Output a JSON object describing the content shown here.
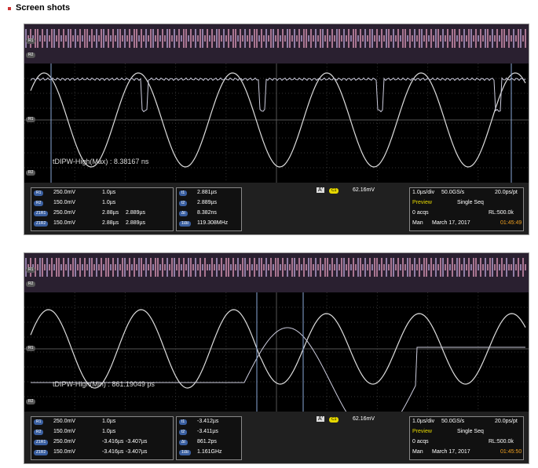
{
  "heading": "Screen shots",
  "panels": [
    {
      "measurement": "tDIPW-High(Max) : 8.38167 ns",
      "markers": {
        "top_r1": "R1",
        "top_r2": "R2",
        "mid_r1": "R1",
        "bottom_r2": "R2"
      },
      "refs": [
        [
          "R1",
          "250.0mV",
          "1.0µs"
        ],
        [
          "R2",
          "150.0mV",
          "1.0µs"
        ],
        [
          "Z1R1",
          "250.0mV",
          "2.88µs",
          "2.889µs"
        ],
        [
          "Z1R2",
          "150.0mV",
          "2.88µs",
          "2.889µs"
        ]
      ],
      "cursors": [
        [
          "t1",
          "2.881µs"
        ],
        [
          "t2",
          "2.889µs"
        ],
        [
          "Δt",
          "8.382ns"
        ],
        [
          "1/Δt",
          "119.308MHz"
        ]
      ],
      "trigger": {
        "mode": "A'",
        "source": "C1",
        "level": "62.16mV"
      },
      "acq": {
        "scale": "1.0µs/div",
        "rate": "50.0GS/s",
        "res": "20.0ps/pt",
        "state": "Preview",
        "seq": "Single Seq",
        "acqs": "0 acqs",
        "rl": "RL:500.0k",
        "mode": "Man",
        "date": "March 17, 2017",
        "time": "01:45:49"
      }
    },
    {
      "measurement": "tDIPW-High(Min) : 861.19049 ps",
      "markers": {
        "top_r1": "R1",
        "top_r2": "R2",
        "mid_r1": "R1",
        "bottom_r2": "R2"
      },
      "refs": [
        [
          "R1",
          "250.0mV",
          "1.0µs"
        ],
        [
          "R2",
          "150.0mV",
          "1.0µs"
        ],
        [
          "Z1R1",
          "250.0mV",
          "-3.416µs",
          "-3.407µs"
        ],
        [
          "Z1R2",
          "150.0mV",
          "-3.416µs",
          "-3.407µs"
        ]
      ],
      "cursors": [
        [
          "t1",
          "-3.412µs"
        ],
        [
          "t2",
          "-3.411µs"
        ],
        [
          "Δt",
          "861.2ps"
        ],
        [
          "1/Δt",
          "1.161GHz"
        ]
      ],
      "trigger": {
        "mode": "A'",
        "source": "C1",
        "level": "62.16mV"
      },
      "acq": {
        "scale": "1.0µs/div",
        "rate": "50.0GS/s",
        "res": "20.0ps/pt",
        "state": "Preview",
        "seq": "Single Seq",
        "acqs": "0 acqs",
        "rl": "RL:500.0k",
        "mode": "Man",
        "date": "March 17, 2017",
        "time": "01:45:50"
      }
    }
  ]
}
